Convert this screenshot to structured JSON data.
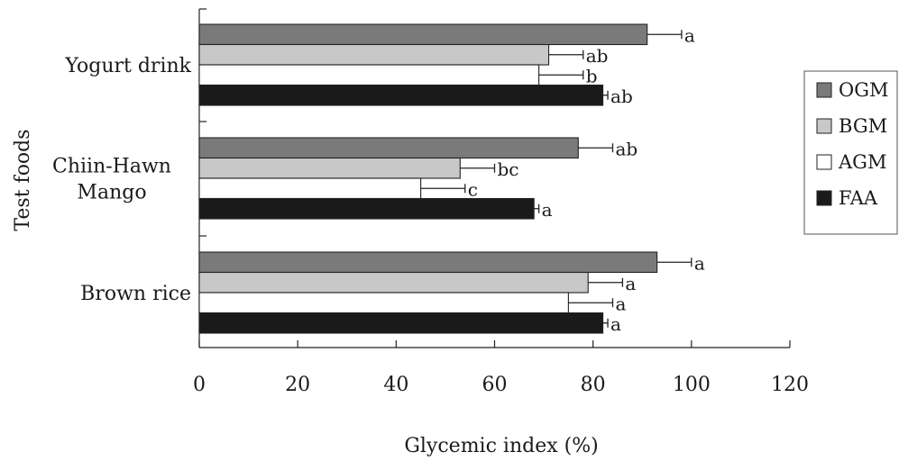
{
  "chart_data": {
    "type": "bar",
    "orientation": "horizontal",
    "title": "",
    "xlabel": "Glycemic index (%)",
    "ylabel": "Test foods",
    "xlim": [
      0,
      120
    ],
    "xticks": [
      "0",
      "20",
      "40",
      "60",
      "80",
      "100",
      "120"
    ],
    "grid": false,
    "legend_position": "right",
    "categories": [
      {
        "lines": [
          "Yogurt drink"
        ]
      },
      {
        "lines": [
          "Chiin-Hawn",
          "Mango"
        ]
      },
      {
        "lines": [
          "Brown rice"
        ]
      }
    ],
    "series": [
      {
        "name": "OGM",
        "color": "#7a7a7a",
        "values": [
          91,
          77,
          93
        ],
        "errors": [
          7,
          7,
          7
        ],
        "labels": [
          "a",
          "ab",
          "a"
        ]
      },
      {
        "name": "BGM",
        "color": "#c8c8c8",
        "values": [
          71,
          53,
          79
        ],
        "errors": [
          7,
          7,
          7
        ],
        "labels": [
          "ab",
          "bc",
          "a"
        ]
      },
      {
        "name": "AGM",
        "color": "#ffffff",
        "values": [
          69,
          45,
          75
        ],
        "errors": [
          9,
          9,
          9
        ],
        "labels": [
          "b",
          "c",
          "a"
        ]
      },
      {
        "name": "FAA",
        "color": "#1a1a1a",
        "values": [
          82,
          68,
          82
        ],
        "errors": [
          1,
          1,
          1
        ],
        "labels": [
          "ab",
          "a",
          "a"
        ]
      }
    ]
  }
}
